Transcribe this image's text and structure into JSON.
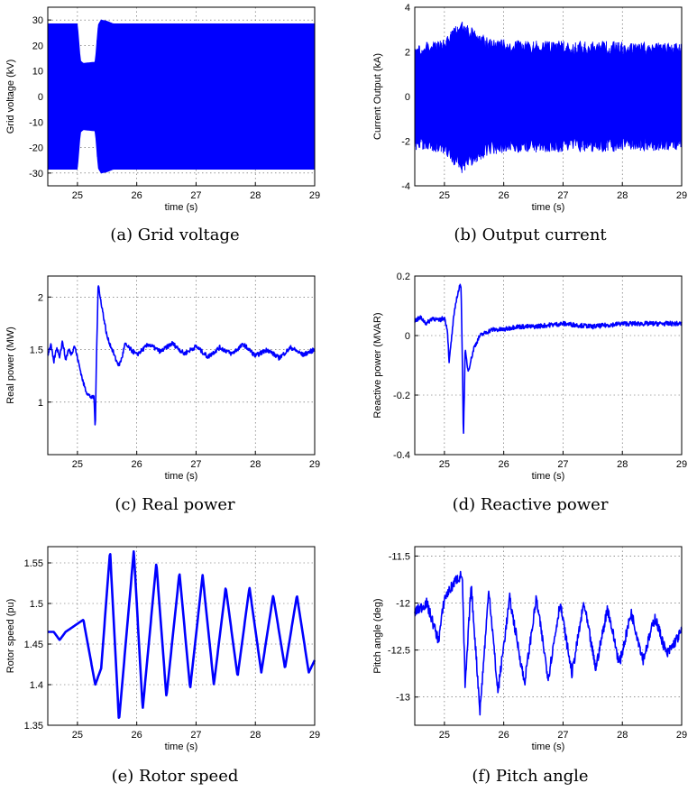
{
  "figure": {
    "trace_color": "#0000ff",
    "panels": [
      {
        "caption": "(a) Grid voltage",
        "xlabel": "time (s)",
        "ylabel": "Grid voltage (kV)"
      },
      {
        "caption": "(b) Output current",
        "xlabel": "time (s)",
        "ylabel": "Current Output (kA)"
      },
      {
        "caption": "(c) Real power",
        "xlabel": "time (s)",
        "ylabel": "Real power (MW)"
      },
      {
        "caption": "(d) Reactive power",
        "xlabel": "time (s)",
        "ylabel": "Reactive power (MVAR)"
      },
      {
        "caption": "(e) Rotor speed",
        "xlabel": "time (s)",
        "ylabel": "Rotor speed (pu)"
      },
      {
        "caption": "(f) Pitch angle",
        "xlabel": "time (s)",
        "ylabel": "Pitch angle (deg)"
      }
    ]
  },
  "chart_data": [
    {
      "type": "line",
      "title": "",
      "xlabel": "time (s)",
      "ylabel": "Grid voltage (kV)",
      "xlim": [
        24.5,
        29
      ],
      "ylim": [
        -35,
        35
      ],
      "xticks": [
        "25",
        "26",
        "27",
        "28",
        "29"
      ],
      "yticks": [
        "-30",
        "-20",
        "-10",
        "0",
        "10",
        "20",
        "30"
      ],
      "grid": true,
      "series": [
        {
          "name": "",
          "style": "oscillatory_band",
          "envelope_x": [
            24.5,
            25.0,
            25.05,
            25.1,
            25.3,
            25.35,
            25.4,
            25.5,
            25.6,
            26.0,
            29.0
          ],
          "upper": [
            28.5,
            28.5,
            14.0,
            13.0,
            13.5,
            28.0,
            30.0,
            29.5,
            28.5,
            28.5,
            28.5
          ]
        }
      ]
    },
    {
      "type": "line",
      "title": "",
      "xlabel": "time (s)",
      "ylabel": "Current Output (kA)",
      "xlim": [
        24.5,
        29
      ],
      "ylim": [
        -4,
        4
      ],
      "xticks": [
        "25",
        "26",
        "27",
        "28",
        "29"
      ],
      "yticks": [
        "-4",
        "-2",
        "0",
        "2",
        "4"
      ],
      "grid": true,
      "series": [
        {
          "name": "",
          "style": "oscillatory_band",
          "envelope_x": [
            24.5,
            25.0,
            25.2,
            25.3,
            25.5,
            25.8,
            26.5,
            27.5,
            29.0
          ],
          "upper": [
            2.4,
            2.6,
            3.2,
            3.5,
            3.0,
            2.6,
            2.5,
            2.5,
            2.4
          ]
        }
      ]
    },
    {
      "type": "line",
      "title": "",
      "xlabel": "time (s)",
      "ylabel": "Real power (MW)",
      "xlim": [
        24.5,
        29
      ],
      "ylim": [
        0.5,
        2.2
      ],
      "xticks": [
        "25",
        "26",
        "27",
        "28",
        "29"
      ],
      "yticks": [
        "1",
        "1.5",
        "2"
      ],
      "grid": true,
      "series": [
        {
          "name": "",
          "x": [
            24.5,
            24.55,
            24.6,
            24.65,
            24.7,
            24.75,
            24.8,
            24.85,
            24.9,
            24.95,
            25.0,
            25.05,
            25.1,
            25.15,
            25.2,
            25.25,
            25.28,
            25.3,
            25.32,
            25.35,
            25.38,
            25.4,
            25.45,
            25.5,
            25.55,
            25.6,
            25.65,
            25.7,
            25.75,
            25.8,
            25.9,
            26.0,
            26.2,
            26.4,
            26.6,
            26.8,
            27.0,
            27.2,
            27.4,
            27.6,
            27.8,
            28.0,
            28.2,
            28.4,
            28.6,
            28.8,
            29.0
          ],
          "y": [
            1.45,
            1.55,
            1.38,
            1.52,
            1.44,
            1.58,
            1.4,
            1.5,
            1.46,
            1.54,
            1.42,
            1.3,
            1.18,
            1.1,
            1.06,
            1.04,
            1.05,
            0.73,
            1.4,
            2.14,
            2.0,
            1.95,
            1.78,
            1.62,
            1.55,
            1.48,
            1.4,
            1.35,
            1.42,
            1.55,
            1.5,
            1.45,
            1.55,
            1.48,
            1.56,
            1.46,
            1.53,
            1.43,
            1.52,
            1.46,
            1.55,
            1.44,
            1.5,
            1.42,
            1.52,
            1.45,
            1.5
          ]
        }
      ]
    },
    {
      "type": "line",
      "title": "",
      "xlabel": "time (s)",
      "ylabel": "Reactive power (MVAR)",
      "xlim": [
        24.5,
        29
      ],
      "ylim": [
        -0.4,
        0.2
      ],
      "xticks": [
        "25",
        "26",
        "27",
        "28",
        "29"
      ],
      "yticks": [
        "-0.4",
        "-0.2",
        "0",
        "0.2"
      ],
      "grid": true,
      "series": [
        {
          "name": "",
          "x": [
            24.5,
            24.6,
            24.7,
            24.8,
            24.9,
            25.0,
            25.05,
            25.08,
            25.1,
            25.15,
            25.2,
            25.25,
            25.28,
            25.3,
            25.32,
            25.35,
            25.4,
            25.45,
            25.5,
            25.55,
            25.6,
            25.7,
            25.8,
            26.0,
            26.2,
            26.5,
            27.0,
            27.5,
            28.0,
            28.5,
            29.0
          ],
          "y": [
            0.05,
            0.06,
            0.04,
            0.06,
            0.05,
            0.06,
            0.02,
            -0.09,
            -0.05,
            0.05,
            0.12,
            0.16,
            0.17,
            -0.05,
            -0.35,
            -0.05,
            -0.12,
            -0.08,
            -0.04,
            -0.02,
            0.0,
            0.01,
            0.02,
            0.02,
            0.03,
            0.03,
            0.04,
            0.03,
            0.04,
            0.04,
            0.04
          ]
        }
      ]
    },
    {
      "type": "line",
      "title": "",
      "xlabel": "time (s)",
      "ylabel": "Rotor speed (pu)",
      "xlim": [
        24.5,
        29
      ],
      "ylim": [
        1.35,
        1.57
      ],
      "xticks": [
        "25",
        "26",
        "27",
        "28",
        "29"
      ],
      "yticks": [
        "1.35",
        "1.4",
        "1.45",
        "1.5",
        "1.55"
      ],
      "grid": true,
      "series": [
        {
          "name": "",
          "x": [
            24.5,
            24.6,
            24.7,
            24.8,
            24.9,
            25.0,
            25.1,
            25.2,
            25.3,
            25.4,
            25.55,
            25.7,
            25.95,
            26.1,
            26.33,
            26.5,
            26.72,
            26.9,
            27.11,
            27.3,
            27.5,
            27.7,
            27.9,
            28.1,
            28.3,
            28.5,
            28.7,
            28.9,
            29.0
          ],
          "y": [
            1.465,
            1.465,
            1.455,
            1.465,
            1.47,
            1.475,
            1.48,
            1.44,
            1.4,
            1.42,
            1.565,
            1.355,
            1.565,
            1.37,
            1.55,
            1.385,
            1.538,
            1.395,
            1.535,
            1.4,
            1.52,
            1.41,
            1.52,
            1.415,
            1.51,
            1.42,
            1.51,
            1.415,
            1.43
          ]
        }
      ]
    },
    {
      "type": "line",
      "title": "",
      "xlabel": "time (s)",
      "ylabel": "Pitch angle (deg)",
      "xlim": [
        24.5,
        29
      ],
      "ylim": [
        -13.3,
        -11.4
      ],
      "xticks": [
        "25",
        "26",
        "27",
        "28",
        "29"
      ],
      "yticks": [
        "-13",
        "-12.5",
        "-12",
        "-11.5"
      ],
      "grid": true,
      "series": [
        {
          "name": "",
          "x": [
            24.5,
            24.7,
            24.9,
            25.0,
            25.1,
            25.2,
            25.3,
            25.35,
            25.45,
            25.6,
            25.75,
            25.9,
            26.1,
            26.35,
            26.55,
            26.75,
            26.95,
            27.15,
            27.35,
            27.55,
            27.75,
            27.95,
            28.15,
            28.35,
            28.55,
            28.75,
            29.0
          ],
          "y": [
            -12.1,
            -12.0,
            -12.4,
            -11.95,
            -11.85,
            -11.75,
            -11.7,
            -12.9,
            -11.8,
            -13.15,
            -11.85,
            -12.95,
            -11.95,
            -12.85,
            -11.95,
            -12.8,
            -12.0,
            -12.75,
            -12.0,
            -12.7,
            -12.05,
            -12.65,
            -12.1,
            -12.6,
            -12.15,
            -12.55,
            -12.3
          ]
        }
      ]
    }
  ]
}
